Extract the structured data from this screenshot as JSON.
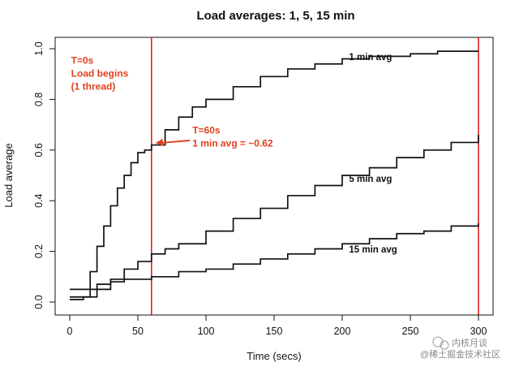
{
  "chart_data": {
    "type": "line",
    "title": "Load averages: 1, 5, 15 min",
    "xlabel": "Time (secs)",
    "ylabel": "Load average",
    "xlim": [
      0,
      300
    ],
    "ylim": [
      0,
      1.0
    ],
    "xticks": [
      0,
      50,
      100,
      150,
      200,
      250,
      300
    ],
    "yticks": [
      0.0,
      0.2,
      0.4,
      0.6,
      0.8,
      1.0
    ],
    "grid": false,
    "series": [
      {
        "name": "1 min avg",
        "line_type": "step",
        "x": [
          0,
          10,
          15,
          20,
          25,
          30,
          35,
          40,
          45,
          50,
          55,
          60,
          70,
          80,
          90,
          100,
          120,
          140,
          160,
          180,
          200,
          220,
          250,
          270,
          280,
          300
        ],
        "y": [
          0.02,
          0.02,
          0.12,
          0.22,
          0.3,
          0.38,
          0.45,
          0.5,
          0.55,
          0.59,
          0.6,
          0.62,
          0.68,
          0.73,
          0.77,
          0.8,
          0.85,
          0.89,
          0.92,
          0.94,
          0.96,
          0.97,
          0.98,
          0.99,
          0.99,
          0.99
        ]
      },
      {
        "name": "5 min avg",
        "line_type": "step",
        "x": [
          0,
          10,
          20,
          30,
          40,
          50,
          60,
          70,
          80,
          100,
          120,
          140,
          160,
          180,
          200,
          220,
          240,
          260,
          280,
          300
        ],
        "y": [
          0.01,
          0.02,
          0.05,
          0.09,
          0.13,
          0.16,
          0.19,
          0.21,
          0.23,
          0.28,
          0.33,
          0.37,
          0.42,
          0.46,
          0.5,
          0.53,
          0.57,
          0.6,
          0.63,
          0.66
        ]
      },
      {
        "name": "15 min avg",
        "line_type": "step",
        "x": [
          0,
          10,
          20,
          30,
          40,
          60,
          80,
          100,
          120,
          140,
          160,
          180,
          200,
          220,
          240,
          260,
          280,
          300
        ],
        "y": [
          0.05,
          0.05,
          0.07,
          0.08,
          0.09,
          0.1,
          0.12,
          0.13,
          0.15,
          0.17,
          0.19,
          0.21,
          0.23,
          0.25,
          0.27,
          0.28,
          0.3,
          0.31
        ]
      }
    ],
    "series_labels": [
      {
        "text": "1 min avg",
        "x": 205,
        "y": 0.955
      },
      {
        "text": "5 min avg",
        "x": 205,
        "y": 0.475
      },
      {
        "text": "15 min avg",
        "x": 205,
        "y": 0.195
      }
    ],
    "vlines": [
      {
        "x": 60,
        "color": "#e02020"
      },
      {
        "x": 300,
        "color": "#e02020"
      }
    ],
    "annotations": [
      {
        "lines": [
          "T=0s",
          "Load begins",
          "(1 thread)"
        ],
        "x": 1,
        "y": 0.94,
        "color": "#e0401f"
      },
      {
        "lines": [
          "T=60s",
          "1 min avg = ~0.62"
        ],
        "x": 90,
        "y": 0.665,
        "color": "#e0401f",
        "arrow_from": [
          88,
          0.638
        ],
        "arrow_to": [
          63,
          0.628
        ]
      }
    ],
    "colors": {
      "line": "#111111",
      "axis": "#111111",
      "vline": "#e02020",
      "annotation": "#e0401f"
    }
  },
  "watermark": {
    "icon": "wechat-icon",
    "line1": "内核月谈",
    "line2": "@稀土掘金技术社区"
  }
}
